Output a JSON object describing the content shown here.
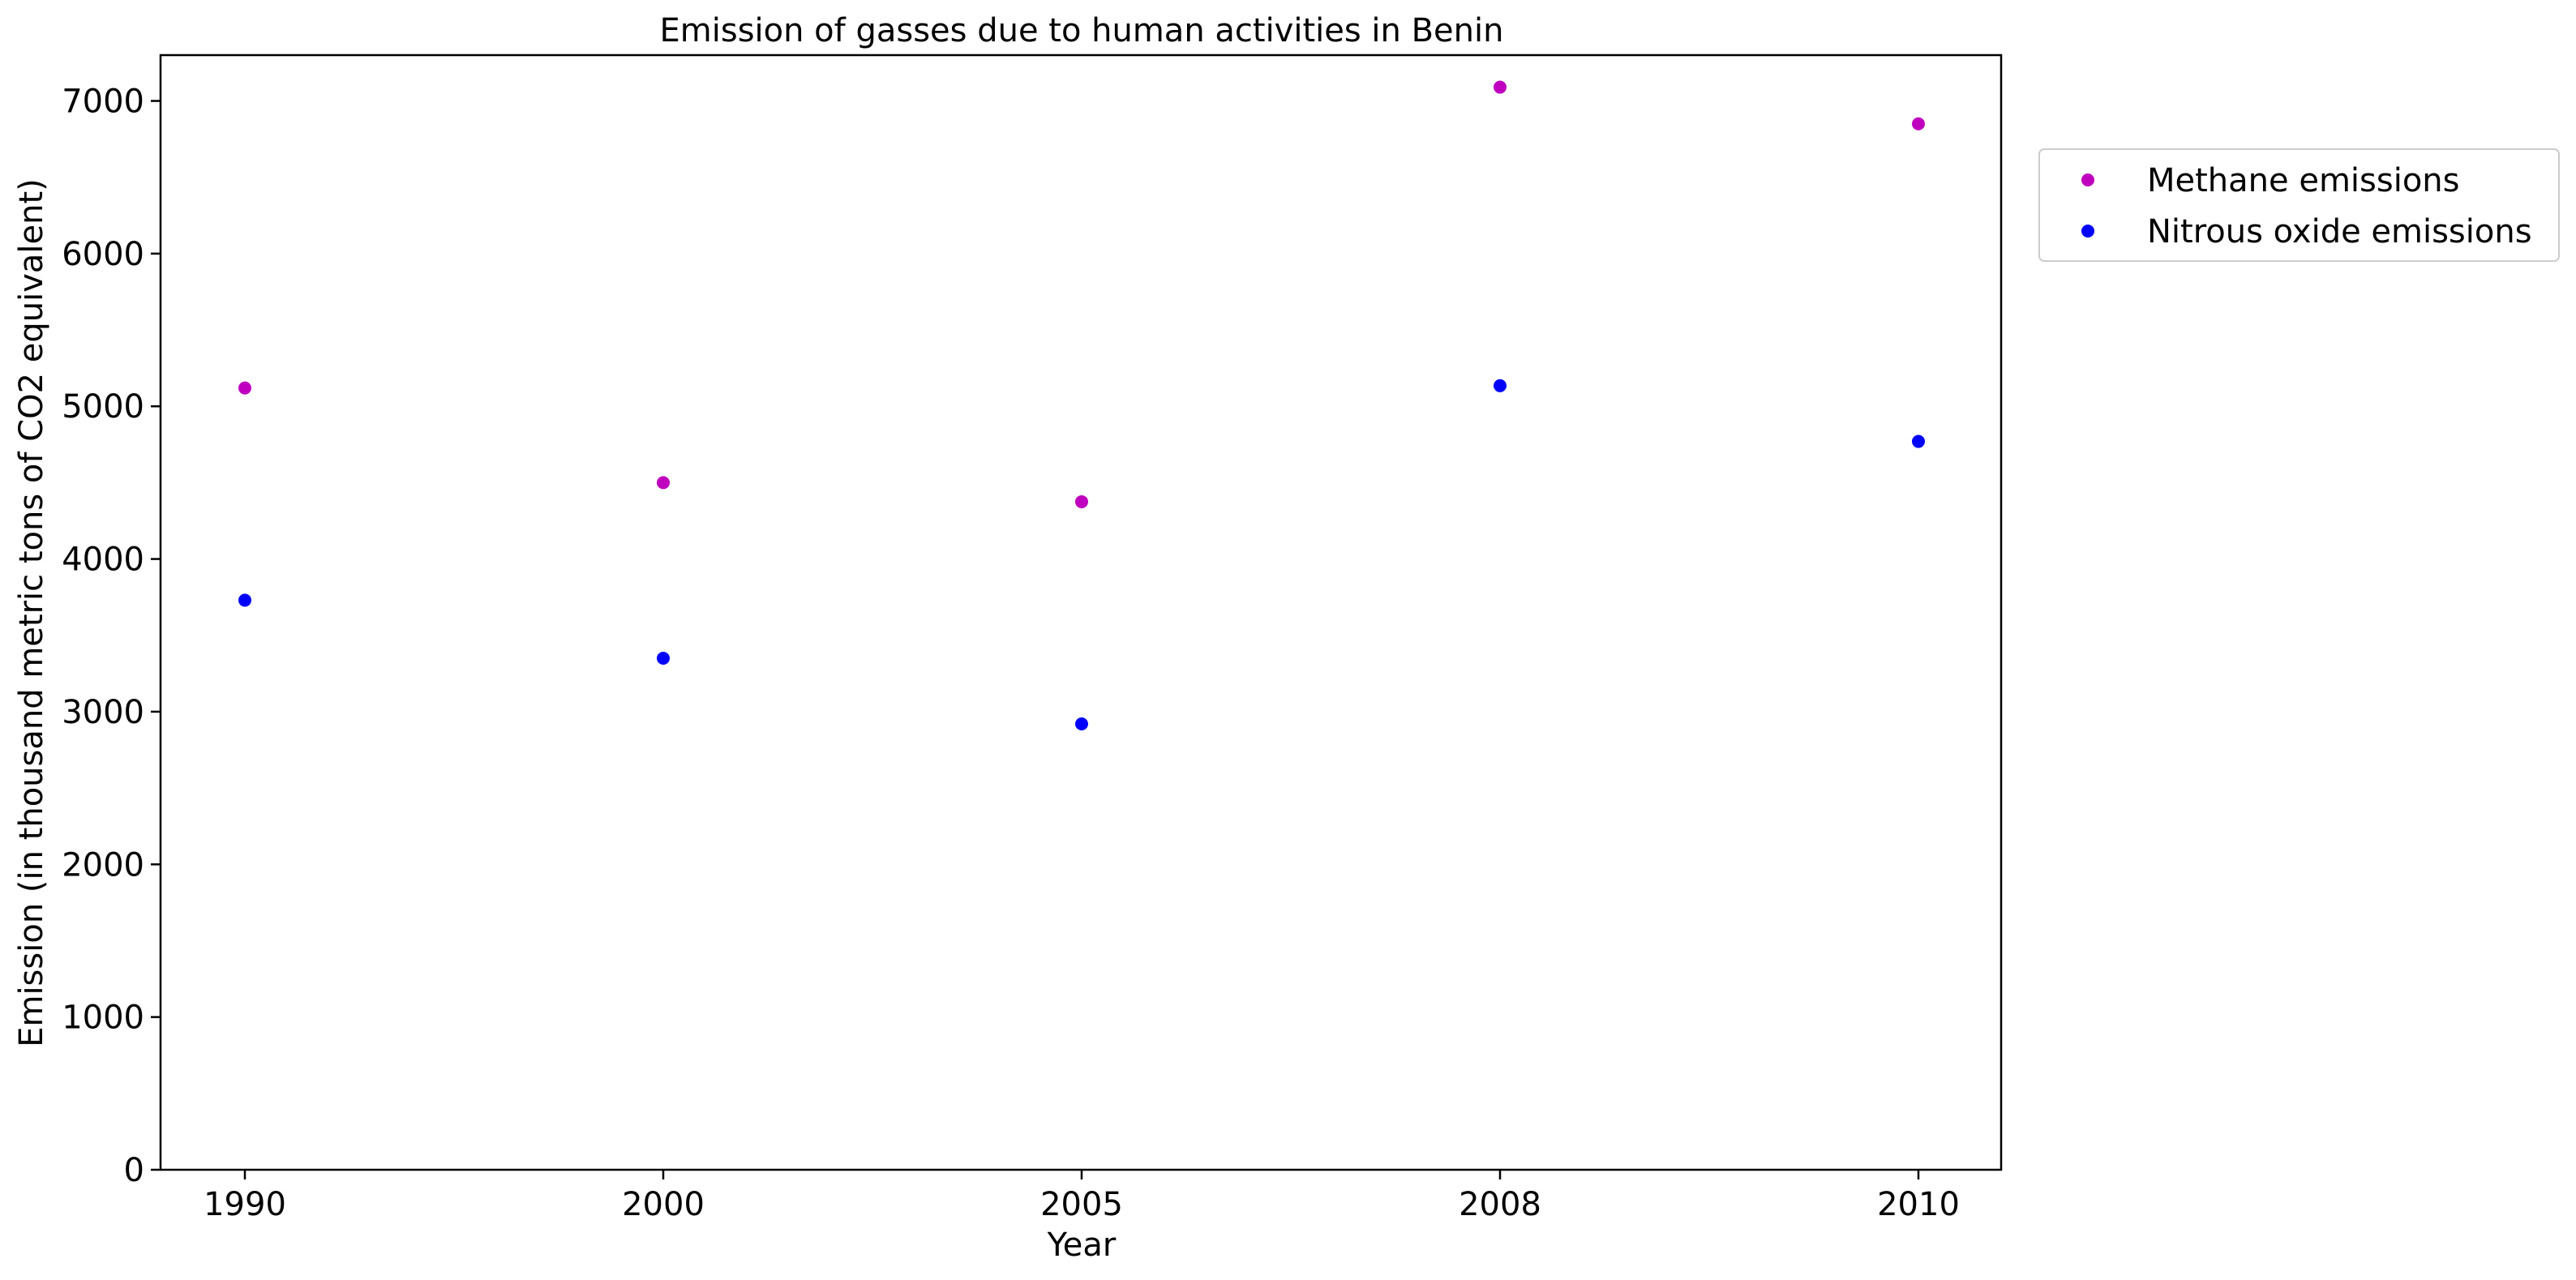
{
  "chart_data": {
    "type": "scatter",
    "title": "Emission of gasses due to human activities in Benin",
    "xlabel": "Year",
    "ylabel": "Emission (in thousand metric tons of CO2 equivalent)",
    "categories": [
      "1990",
      "2000",
      "2005",
      "2008",
      "2010"
    ],
    "ylim": [
      0,
      7300
    ],
    "yticks": [
      0,
      1000,
      2000,
      3000,
      4000,
      5000,
      6000,
      7000
    ],
    "grid": false,
    "legend_position": "outside-top-right",
    "series": [
      {
        "name": "Methane emissions",
        "color": "#bf00bf",
        "values": [
          5120,
          4500,
          4375,
          7090,
          6850
        ]
      },
      {
        "name": "Nitrous oxide emissions",
        "color": "#0000ff",
        "values": [
          3730,
          3350,
          2920,
          5135,
          4770
        ]
      }
    ]
  }
}
